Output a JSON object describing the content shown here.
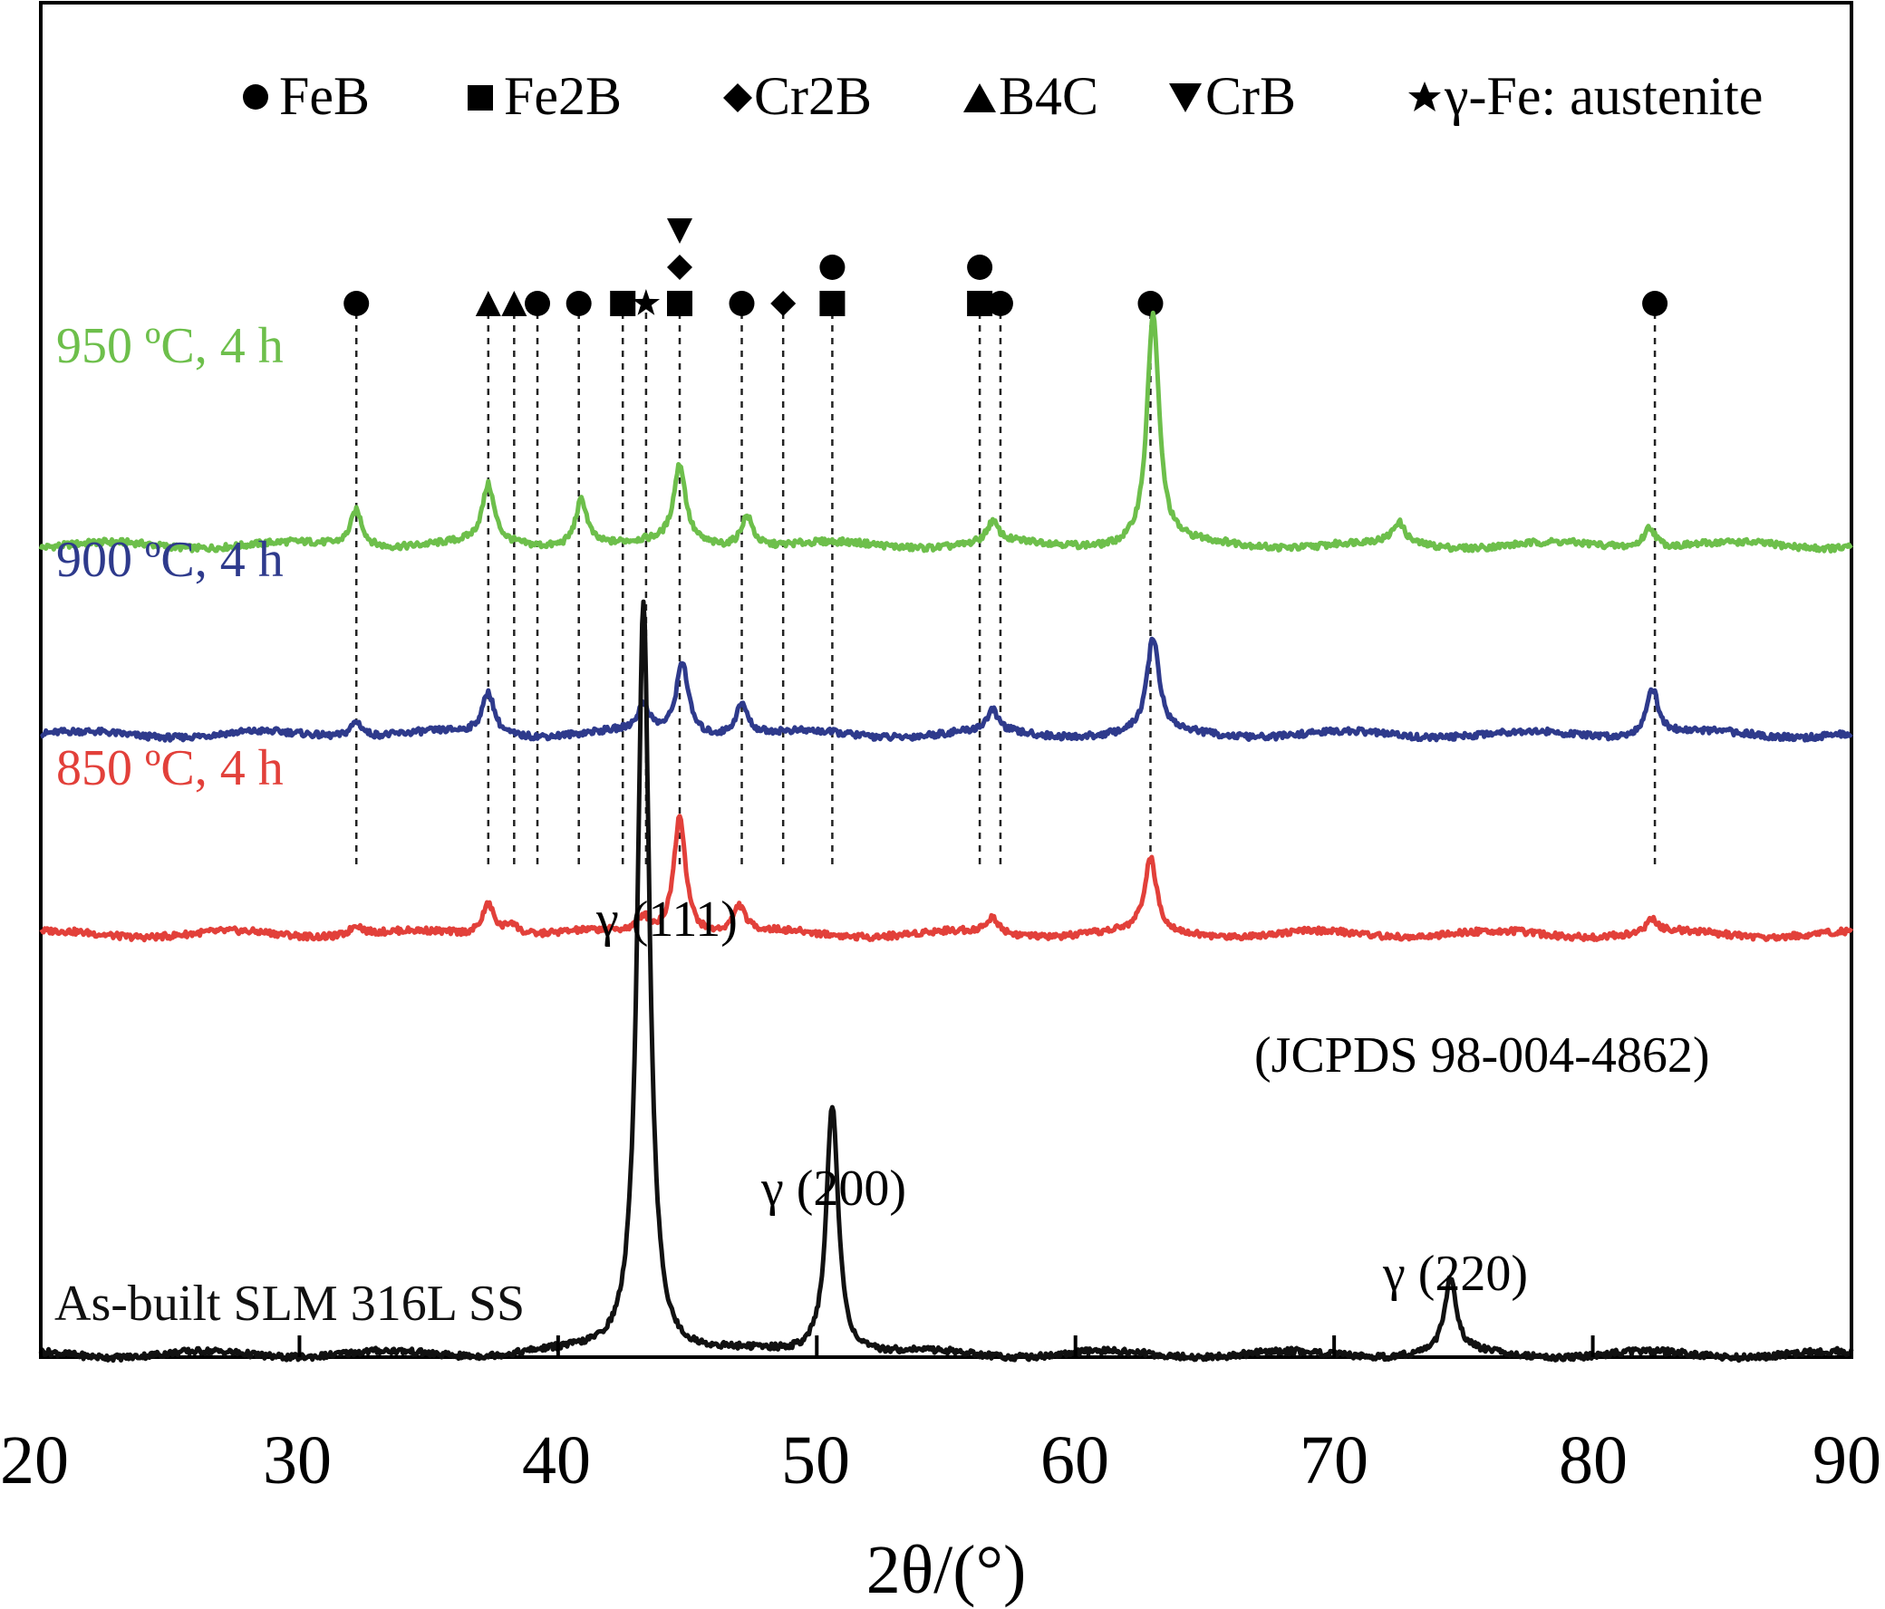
{
  "chart_data": {
    "type": "line",
    "title": "",
    "xlabel": "2θ/(°)",
    "ylabel": "",
    "xlim": [
      20,
      90
    ],
    "xticks": [
      "20",
      "30",
      "40",
      "50",
      "60",
      "70",
      "80",
      "90"
    ],
    "legend_position": "top",
    "grid": false,
    "legend": [
      {
        "marker": "circle",
        "label": "FeB"
      },
      {
        "marker": "square",
        "label": "Fe2B"
      },
      {
        "marker": "diamond",
        "label": "Cr2B"
      },
      {
        "marker": "triangle-up",
        "label": "B4C"
      },
      {
        "marker": "triangle-down",
        "label": "CrB"
      },
      {
        "marker": "star",
        "label": "γ-Fe: austenite"
      }
    ],
    "series": [
      {
        "name": "950 ºC, 4 h",
        "color": "#6dbf4b",
        "baseline": 0.0,
        "offset": 0.77,
        "peaks": [
          [
            32.2,
            0.035
          ],
          [
            37.3,
            0.055
          ],
          [
            40.9,
            0.045
          ],
          [
            44.7,
            0.075
          ],
          [
            47.3,
            0.03
          ],
          [
            56.8,
            0.02
          ],
          [
            63.0,
            0.22
          ],
          [
            72.5,
            0.02
          ],
          [
            82.2,
            0.02
          ]
        ]
      },
      {
        "name": "900 ºC, 4 h",
        "color": "#2e3a8c",
        "baseline": 0.0,
        "offset": 0.59,
        "peaks": [
          [
            32.2,
            0.015
          ],
          [
            37.3,
            0.04
          ],
          [
            43.3,
            0.025
          ],
          [
            44.8,
            0.07
          ],
          [
            47.1,
            0.03
          ],
          [
            56.8,
            0.02
          ],
          [
            63.0,
            0.09
          ],
          [
            82.3,
            0.045
          ]
        ]
      },
      {
        "name": "850 ºC, 4 h",
        "color": "#e2403a",
        "baseline": 0.0,
        "offset": 0.4,
        "peaks": [
          [
            32.2,
            0.01
          ],
          [
            37.3,
            0.03
          ],
          [
            38.2,
            0.012
          ],
          [
            43.3,
            0.015
          ],
          [
            44.7,
            0.115
          ],
          [
            47.0,
            0.025
          ],
          [
            56.8,
            0.015
          ],
          [
            62.9,
            0.07
          ],
          [
            82.3,
            0.012
          ]
        ]
      },
      {
        "name": "As-built SLM 316L SS",
        "color": "#111111",
        "baseline": 0.0,
        "offset": 0.0,
        "peaks": [
          [
            43.3,
            0.72
          ],
          [
            50.6,
            0.24
          ],
          [
            74.5,
            0.07
          ]
        ]
      }
    ],
    "peak_markers": [
      {
        "x": 32.2,
        "markers": [
          "circle"
        ]
      },
      {
        "x": 37.3,
        "markers": [
          "triangle-up"
        ]
      },
      {
        "x": 38.3,
        "markers": [
          "triangle-up"
        ]
      },
      {
        "x": 39.2,
        "markers": [
          "circle"
        ]
      },
      {
        "x": 40.8,
        "markers": [
          "circle"
        ]
      },
      {
        "x": 42.5,
        "markers": [
          "square"
        ]
      },
      {
        "x": 43.4,
        "markers": [
          "star"
        ]
      },
      {
        "x": 44.7,
        "markers": [
          "square",
          "diamond",
          "triangle-down"
        ]
      },
      {
        "x": 47.1,
        "markers": [
          "circle"
        ]
      },
      {
        "x": 48.7,
        "markers": [
          "diamond"
        ]
      },
      {
        "x": 50.6,
        "markers": [
          "square",
          "circle"
        ]
      },
      {
        "x": 56.3,
        "markers": [
          "square",
          "circle"
        ]
      },
      {
        "x": 57.1,
        "markers": [
          "circle"
        ]
      },
      {
        "x": 62.9,
        "markers": [
          "circle"
        ]
      },
      {
        "x": 82.4,
        "markers": [
          "circle"
        ]
      }
    ],
    "annotations": [
      {
        "text": "γ (111)",
        "x": 43.4
      },
      {
        "text": "γ (200)",
        "x": 50.6
      },
      {
        "text": "γ (220)",
        "x": 74.5
      },
      {
        "text": "(JCPDS 98-004-4862)",
        "x": 80.0
      }
    ]
  }
}
